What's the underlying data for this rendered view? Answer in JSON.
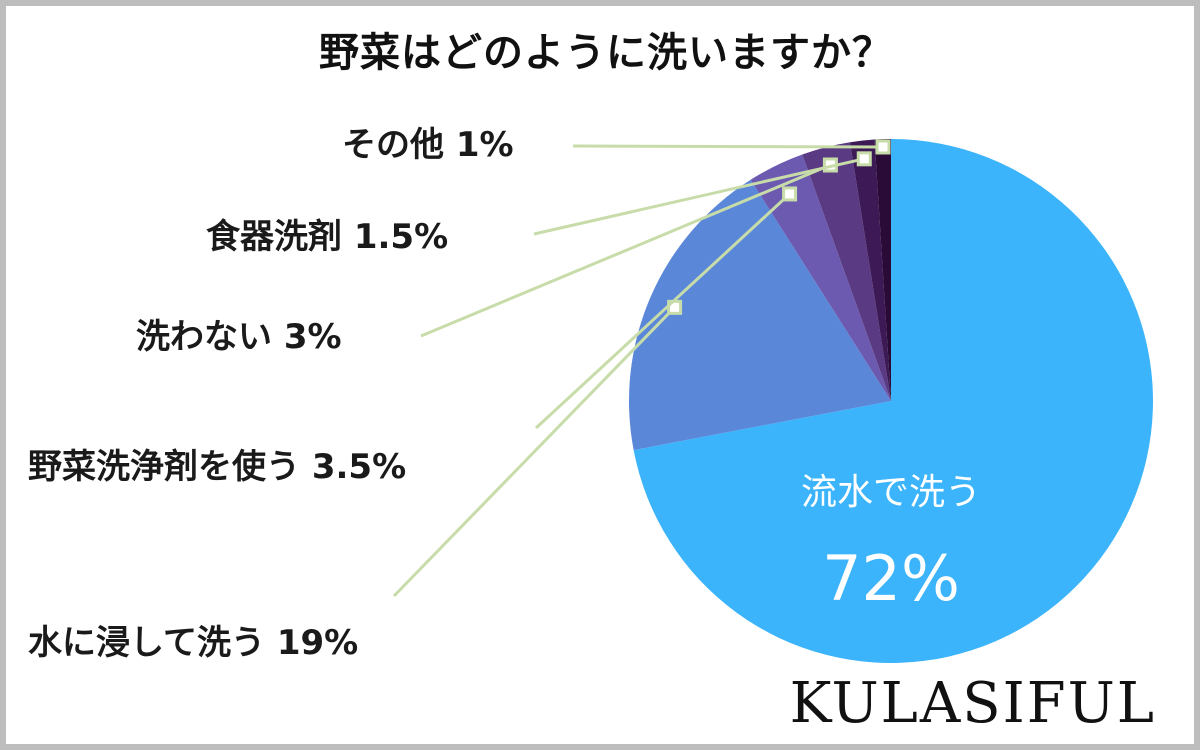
{
  "chart_data": {
    "type": "pie",
    "title": "野菜はどのように洗いますか？",
    "slices": [
      {
        "label": "流水で洗う",
        "value": 72,
        "display": "72%",
        "color": "#3bb4fb"
      },
      {
        "label": "水に浸して洗う",
        "value": 19,
        "display": "水に浸して洗う 19%",
        "color": "#5b87d8"
      },
      {
        "label": "野菜洗浄剤を使う",
        "value": 3.5,
        "display": "野菜洗浄剤を使う 3.5%",
        "color": "#6b5ab0"
      },
      {
        "label": "洗わない",
        "value": 3,
        "display": "洗わない 3%",
        "color": "#5a3a82"
      },
      {
        "label": "食器洗剤",
        "value": 1.5,
        "display": "食器洗剤 1.5%",
        "color": "#3d1a55"
      },
      {
        "label": "その他",
        "value": 1,
        "display": "その他 1%",
        "color": "#2a0a36"
      }
    ],
    "leader_color": "#c8dcaa"
  },
  "brand": "KULASIFUL"
}
